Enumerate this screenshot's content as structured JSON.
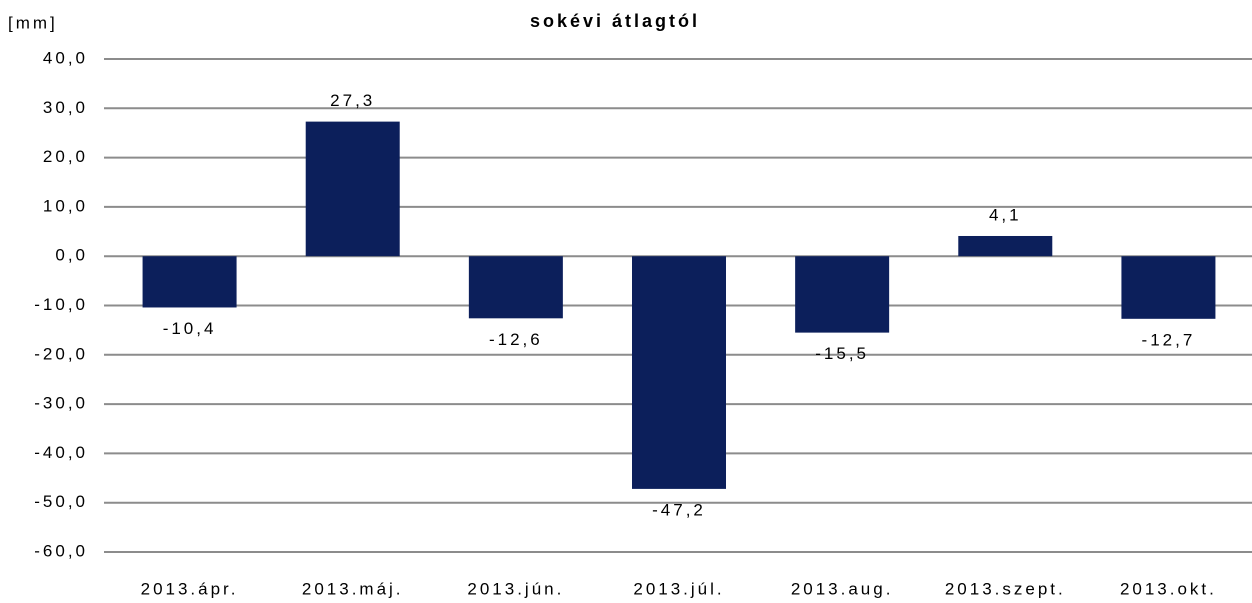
{
  "chart_data": {
    "type": "bar",
    "title": "sokévi átlagtól",
    "y_label": "[mm]",
    "categories": [
      "2013.ápr.",
      "2013.máj.",
      "2013.jún.",
      "2013.júl.",
      "2013.aug.",
      "2013.szept.",
      "2013.okt."
    ],
    "values": [
      -10.4,
      27.3,
      -12.6,
      -47.2,
      -15.5,
      4.1,
      -12.7
    ],
    "value_labels": [
      "-10,4",
      "27,3",
      "-12,6",
      "-47,2",
      "-15,5",
      "4,1",
      "-12,7"
    ],
    "color": "#0c1f5b",
    "ylim": [
      -60,
      40
    ],
    "yticks": [
      {
        "value": -60,
        "label": "-60,0"
      },
      {
        "value": -50,
        "label": "-50,0"
      },
      {
        "value": -40,
        "label": "-40,0"
      },
      {
        "value": -30,
        "label": "-30,0"
      },
      {
        "value": -20,
        "label": "-20,0"
      },
      {
        "value": -10,
        "label": "-10,0"
      },
      {
        "value": 0,
        "label": "0,0"
      },
      {
        "value": 10,
        "label": "10,0"
      },
      {
        "value": 20,
        "label": "20,0"
      },
      {
        "value": 30,
        "label": "30,0"
      },
      {
        "value": 40,
        "label": "40,0"
      }
    ],
    "grid": true
  }
}
